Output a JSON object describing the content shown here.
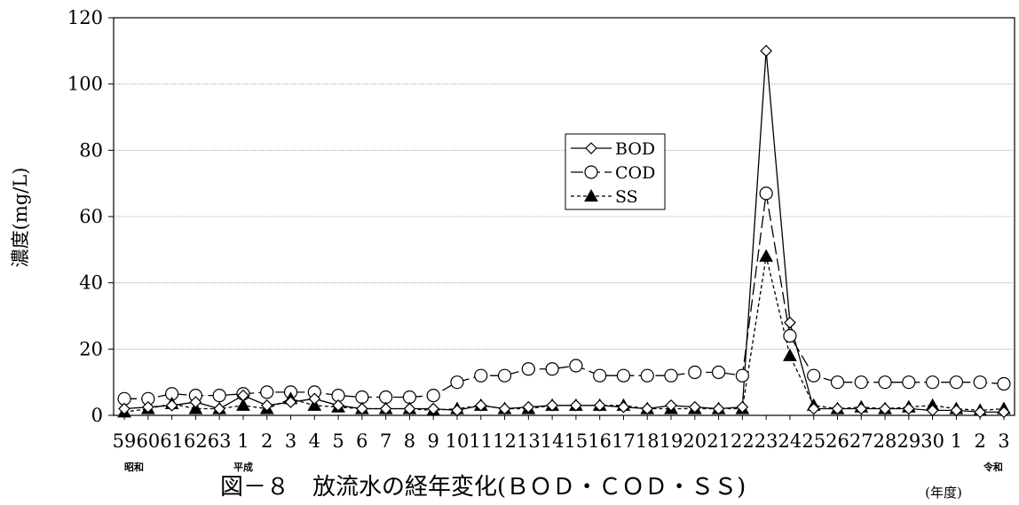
{
  "chart_data": {
    "type": "line",
    "title": "図－８　放流水の経年変化(ＢＯＤ・ＣＯＤ・ＳＳ)",
    "ylabel": "濃度(mg/L)",
    "xlabel": "(年度)",
    "ylim": [
      0,
      120
    ],
    "yticks": [
      0,
      20,
      40,
      60,
      80,
      100,
      120
    ],
    "grid": true,
    "legend_position": "center-right",
    "categories": [
      "59",
      "60",
      "61",
      "62",
      "63",
      "1",
      "2",
      "3",
      "4",
      "5",
      "6",
      "7",
      "8",
      "9",
      "10",
      "11",
      "12",
      "13",
      "14",
      "15",
      "16",
      "17",
      "18",
      "19",
      "20",
      "21",
      "22",
      "23",
      "24",
      "25",
      "26",
      "27",
      "28",
      "29",
      "30",
      "1",
      "2",
      "3"
    ],
    "eras": [
      {
        "label": "昭和",
        "index": 0
      },
      {
        "label": "平成",
        "index": 5
      },
      {
        "label": "令和",
        "index": 37
      }
    ],
    "series": [
      {
        "name": "BOD",
        "marker": "diamond",
        "dash": "solid",
        "values": [
          2,
          2.5,
          3,
          4,
          2,
          6,
          3,
          4,
          5,
          3,
          2,
          2,
          2,
          2,
          1.5,
          3,
          2,
          2.5,
          3,
          3,
          3,
          2.5,
          2,
          3,
          2.5,
          2,
          2.5,
          110,
          28,
          2,
          2,
          2,
          2,
          2,
          1.5,
          1.5,
          1,
          1
        ]
      },
      {
        "name": "COD",
        "marker": "circle",
        "dash": "longdash",
        "values": [
          5,
          5,
          6.5,
          6,
          6,
          6.5,
          7,
          7,
          7,
          6,
          5.5,
          5.5,
          5.5,
          6,
          10,
          12,
          12,
          14,
          14,
          15,
          12,
          12,
          12,
          12,
          13,
          13,
          12,
          67,
          24,
          12,
          10,
          10,
          10,
          10,
          10,
          10,
          10,
          9.5
        ]
      },
      {
        "name": "SS",
        "marker": "triangle",
        "dash": "dotted",
        "values": [
          1,
          2,
          3.5,
          2,
          2,
          3,
          2,
          5,
          3,
          2.5,
          2,
          2,
          2,
          1.5,
          2,
          3,
          2,
          2,
          3,
          3,
          3,
          3,
          2,
          2,
          2,
          2,
          2,
          48,
          18,
          3,
          2,
          2.5,
          2,
          2.5,
          3,
          2,
          1.5,
          2
        ]
      }
    ]
  }
}
